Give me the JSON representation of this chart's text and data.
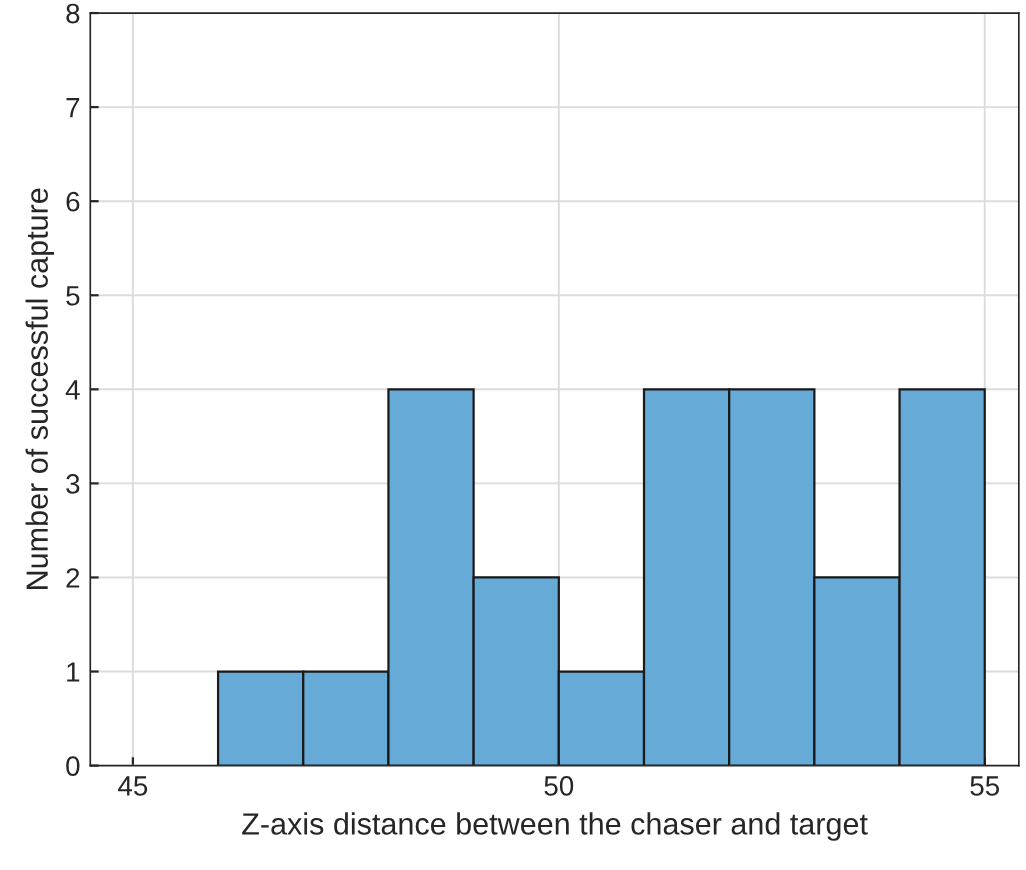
{
  "chart_data": {
    "type": "histogram",
    "xlabel": "Z-axis distance between the chaser and target",
    "ylabel": "Number of successful capture",
    "bins": [
      46,
      47,
      48,
      49,
      50,
      51,
      52,
      53,
      54,
      55
    ],
    "values": [
      1,
      1,
      4,
      2,
      1,
      4,
      4,
      2,
      4
    ],
    "color": "#66aad7",
    "xlim": [
      44.5,
      55.4
    ],
    "xticks": [
      45,
      50,
      55
    ],
    "ylim": [
      0,
      8
    ],
    "yticks": [
      0,
      1,
      2,
      3,
      4,
      5,
      6,
      7,
      8
    ],
    "grid": true
  }
}
